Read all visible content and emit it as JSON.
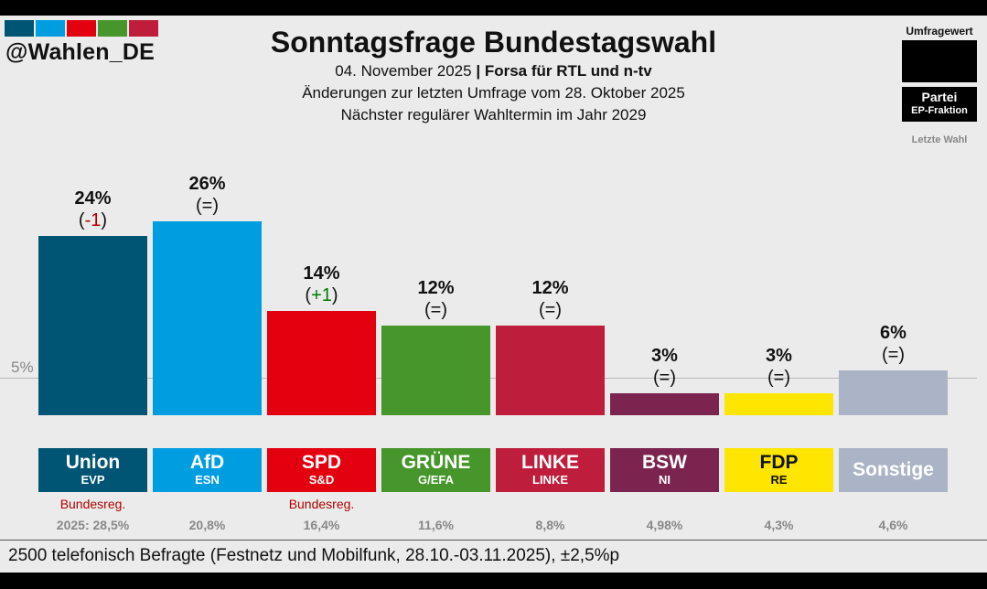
{
  "header": {
    "handle": "@Wahlen_DE",
    "title": "Sonntagsfrage Bundestagswahl",
    "date": "04. November 2025",
    "separator": "|",
    "institute": "Forsa für RTL und n-tv",
    "subtitle2": "Änderungen zur letzten Umfrage vom 28. Oktober 2025",
    "subtitle3": "Nächster regulärer Wahltermin im Jahr 2029",
    "logo_colors": [
      "#005474",
      "#009ee0",
      "#e3000f",
      "#46962b",
      "#be1e3c"
    ]
  },
  "legend": {
    "poll_value_label": "Umfragewert",
    "party_label": "Partei",
    "ep_label": "EP-Fraktion",
    "last_election_label": "Letzte Wahl"
  },
  "chart_data": {
    "type": "bar",
    "categories": [
      "Union",
      "AfD",
      "SPD",
      "GRÜNE",
      "LINKE",
      "BSW",
      "FDP",
      "Sonstige"
    ],
    "values": [
      24,
      26,
      14,
      12,
      12,
      3,
      3,
      6
    ],
    "value_labels": [
      "24%",
      "26%",
      "14%",
      "12%",
      "12%",
      "3%",
      "3%",
      "6%"
    ],
    "changes": [
      {
        "open": "(",
        "num": "-1",
        "close": ")",
        "dir": "down"
      },
      {
        "open": "(",
        "num": "=",
        "close": ")",
        "dir": "none"
      },
      {
        "open": "(",
        "num": "+1",
        "close": ")",
        "dir": "up"
      },
      {
        "open": "(",
        "num": "=",
        "close": ")",
        "dir": "none"
      },
      {
        "open": "(",
        "num": "=",
        "close": ")",
        "dir": "none"
      },
      {
        "open": "(",
        "num": "=",
        "close": ")",
        "dir": "none"
      },
      {
        "open": "(",
        "num": "=",
        "close": ")",
        "dir": "none"
      },
      {
        "open": "(",
        "num": "=",
        "close": ")",
        "dir": "none"
      }
    ],
    "ep_groups": [
      "EVP",
      "ESN",
      "S&D",
      "G/EFA",
      "LINKE",
      "NI",
      "RE",
      ""
    ],
    "colors": [
      "#005474",
      "#009ee0",
      "#e3000f",
      "#46962b",
      "#be1e3c",
      "#7b2450",
      "#ffe600",
      "#aab4c6"
    ],
    "name_text_colors": [
      "#ffffff",
      "#ffffff",
      "#ffffff",
      "#ffffff",
      "#ffffff",
      "#ffffff",
      "#111111",
      "#ffffff"
    ],
    "government": [
      "Bundesreg.",
      "",
      "Bundesreg.",
      "",
      "",
      "",
      "",
      ""
    ],
    "last_election": [
      "2025: 28,5%",
      "20,8%",
      "16,4%",
      "11,6%",
      "8,8%",
      "4,98%",
      "4,3%",
      "4,6%"
    ],
    "reference_value": 5,
    "reference_label": "5%",
    "ylim": [
      0,
      26
    ]
  },
  "footer": {
    "note": "2500 telefonisch Befragte (Festnetz und Mobilfunk, 28.10.-03.11.2025), ±2,5%p"
  }
}
